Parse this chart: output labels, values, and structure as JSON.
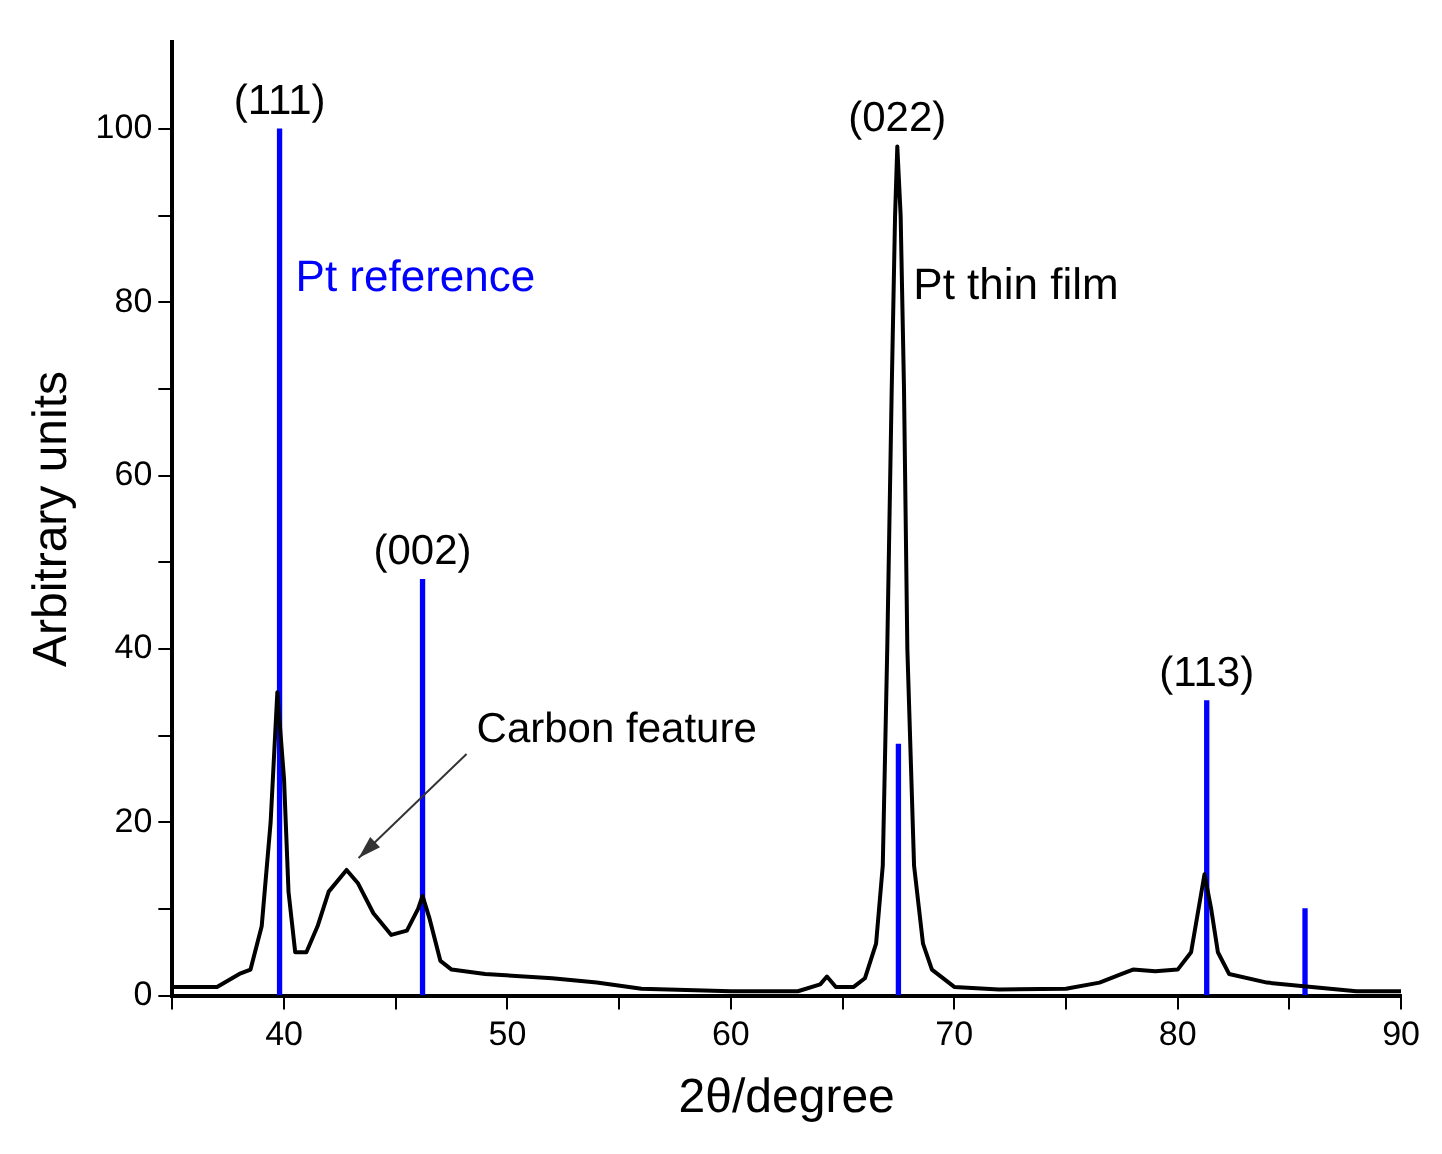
{
  "chart_data": {
    "type": "line",
    "xlabel": "2θ/degree",
    "ylabel": "Arbitrary units",
    "xlim": [
      35,
      90
    ],
    "ylim": [
      0,
      110
    ],
    "xticks": [
      {
        "value": 35,
        "label": null
      },
      40,
      {
        "value": 45,
        "label": null
      },
      50,
      {
        "value": 55,
        "label": null
      },
      60,
      {
        "value": 65,
        "label": null
      },
      70,
      {
        "value": 75,
        "label": null
      },
      80,
      {
        "value": 85,
        "label": null
      },
      90
    ],
    "yticks": [
      0,
      {
        "value": 10,
        "label": null
      },
      20,
      {
        "value": 30,
        "label": null
      },
      40,
      {
        "value": 50,
        "label": null
      },
      60,
      {
        "value": 70,
        "label": null
      },
      80,
      {
        "value": 90,
        "label": null
      },
      100
    ],
    "legend": false,
    "marker": "none",
    "line_style": "solid",
    "series": [
      {
        "name": "Pt thin film",
        "color": "#000000",
        "x": [
          35,
          37,
          38,
          38.5,
          39,
          39.4,
          39.7,
          40.0,
          40.2,
          40.5,
          41,
          41.5,
          42,
          42.8,
          43.3,
          44,
          44.8,
          45.5,
          46.0,
          46.2,
          46.5,
          47,
          47.5,
          49,
          52,
          54,
          56,
          60,
          63,
          64,
          64.3,
          64.7,
          65.5,
          66,
          66.5,
          66.8,
          67.0,
          67.2,
          67.35,
          67.45,
          67.6,
          67.75,
          67.9,
          68.2,
          68.6,
          69,
          70,
          72,
          75,
          76.5,
          77.5,
          78,
          79,
          80,
          80.6,
          81.0,
          81.2,
          81.5,
          81.8,
          82.3,
          84,
          86,
          88,
          90
        ],
        "values": [
          1,
          1,
          2.5,
          3,
          8,
          20,
          35,
          25,
          12,
          5,
          5,
          8,
          12,
          14.5,
          13,
          9.5,
          7,
          7.5,
          10,
          11.5,
          9,
          4,
          3,
          2.5,
          2,
          1.5,
          0.8,
          0.5,
          0.5,
          1.3,
          2.2,
          1,
          1,
          2,
          6,
          15,
          40,
          70,
          90,
          98,
          90,
          70,
          40,
          15,
          6,
          3,
          1,
          0.7,
          0.8,
          1.5,
          2.5,
          3,
          2.8,
          3,
          5,
          11,
          14,
          10,
          5,
          2.5,
          1.5,
          1,
          0.5,
          0.5
        ]
      },
      {
        "name": "Pt reference",
        "type": "bar",
        "color": "#0000ff",
        "x": [
          39.8,
          46.2,
          67.5,
          81.3,
          85.7
        ],
        "values": [
          100,
          48,
          29,
          34,
          10
        ]
      }
    ],
    "annotations": [
      {
        "text": "(111)",
        "x": 39.8,
        "y": 100
      },
      {
        "text": "(002)",
        "x": 46.2,
        "y": 48
      },
      {
        "text": "(022)",
        "x": 67.45,
        "y": 98
      },
      {
        "text": "(113)",
        "x": 81.3,
        "y": 34
      },
      {
        "text": "Carbon feature",
        "x": 42.8,
        "y": 14.5
      }
    ]
  }
}
